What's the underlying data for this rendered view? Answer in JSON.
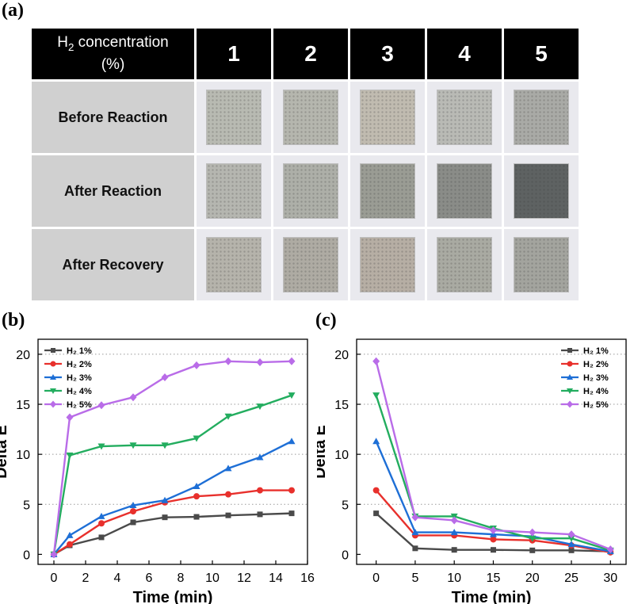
{
  "panels": {
    "a": "(a)",
    "b": "(b)",
    "c": "(c)"
  },
  "table": {
    "corner_main": "H",
    "corner_sub": "2",
    "corner_rest": " concentration",
    "corner_unit": "(%)",
    "columns": [
      "1",
      "2",
      "3",
      "4",
      "5"
    ],
    "rows": [
      {
        "label": "Before Reaction",
        "colors": [
          "#b8bab2",
          "#b5b6ae",
          "#c0bbb0",
          "#b9bab5",
          "#a9aaa6"
        ]
      },
      {
        "label": "After Reaction",
        "colors": [
          "#b5b6b0",
          "#adafa8",
          "#9a9c94",
          "#8a8c88",
          "#5e6262"
        ]
      },
      {
        "label": "After Recovery",
        "colors": [
          "#b5b3ab",
          "#aeaba3",
          "#b6aea4",
          "#a9aaa2",
          "#a3a49e"
        ]
      }
    ]
  },
  "chart_data": [
    {
      "type": "line",
      "xlabel": "Time (min)",
      "ylabel": "Delta E",
      "xlim": [
        -1,
        16
      ],
      "ylim": [
        -1,
        21.5
      ],
      "xticks": [
        0,
        2,
        4,
        6,
        8,
        10,
        12,
        14,
        16
      ],
      "yticks": [
        0,
        5,
        10,
        15,
        20
      ],
      "grid": "horizontal-dotted",
      "legend_position": "top-left",
      "x": [
        0,
        1,
        3,
        5,
        7,
        9,
        11,
        13,
        15
      ],
      "series": [
        {
          "name": "H₂ 1%",
          "color": "#4a4a4a",
          "marker": "square",
          "values": [
            0,
            0.9,
            1.7,
            3.2,
            3.7,
            3.75,
            3.9,
            4.0,
            4.1
          ]
        },
        {
          "name": "H₂ 2%",
          "color": "#e8302c",
          "marker": "circle",
          "values": [
            0,
            1.0,
            3.1,
            4.3,
            5.2,
            5.8,
            6.0,
            6.4,
            6.4
          ]
        },
        {
          "name": "H₂ 3%",
          "color": "#1e6fd6",
          "marker": "triangle",
          "values": [
            0,
            1.9,
            3.8,
            4.9,
            5.4,
            6.8,
            8.6,
            9.7,
            11.3
          ]
        },
        {
          "name": "H₂ 4%",
          "color": "#23ad5f",
          "marker": "tri-down",
          "values": [
            0,
            9.9,
            10.8,
            10.9,
            10.9,
            11.6,
            13.8,
            14.8,
            15.9
          ]
        },
        {
          "name": "H₂ 5%",
          "color": "#b96ce8",
          "marker": "diamond",
          "values": [
            0,
            13.7,
            14.9,
            15.7,
            17.7,
            18.9,
            19.3,
            19.2,
            19.3
          ]
        }
      ]
    },
    {
      "type": "line",
      "xlabel": "Time (min)",
      "ylabel": "Delta E",
      "xlim": [
        -2.5,
        32
      ],
      "ylim": [
        -1,
        21.5
      ],
      "xticks": [
        0,
        5,
        10,
        15,
        20,
        25,
        30
      ],
      "yticks": [
        0,
        5,
        10,
        15,
        20
      ],
      "grid": "horizontal-dotted",
      "legend_position": "top-right",
      "x": [
        0,
        5,
        10,
        15,
        20,
        25,
        30
      ],
      "series": [
        {
          "name": "H₂ 1%",
          "color": "#4a4a4a",
          "marker": "square",
          "values": [
            4.1,
            0.6,
            0.45,
            0.45,
            0.4,
            0.4,
            0.3
          ]
        },
        {
          "name": "H₂ 2%",
          "color": "#e8302c",
          "marker": "circle",
          "values": [
            6.4,
            1.9,
            1.9,
            1.5,
            1.4,
            0.9,
            0.2
          ]
        },
        {
          "name": "H₂ 3%",
          "color": "#1e6fd6",
          "marker": "triangle",
          "values": [
            11.3,
            2.2,
            2.2,
            2.0,
            1.8,
            1.0,
            0.3
          ]
        },
        {
          "name": "H₂ 4%",
          "color": "#23ad5f",
          "marker": "tri-down",
          "values": [
            15.9,
            3.8,
            3.8,
            2.6,
            1.6,
            1.6,
            0.4
          ]
        },
        {
          "name": "H₂ 5%",
          "color": "#b96ce8",
          "marker": "diamond",
          "values": [
            19.3,
            3.7,
            3.4,
            2.4,
            2.2,
            2.0,
            0.5
          ]
        }
      ]
    }
  ]
}
